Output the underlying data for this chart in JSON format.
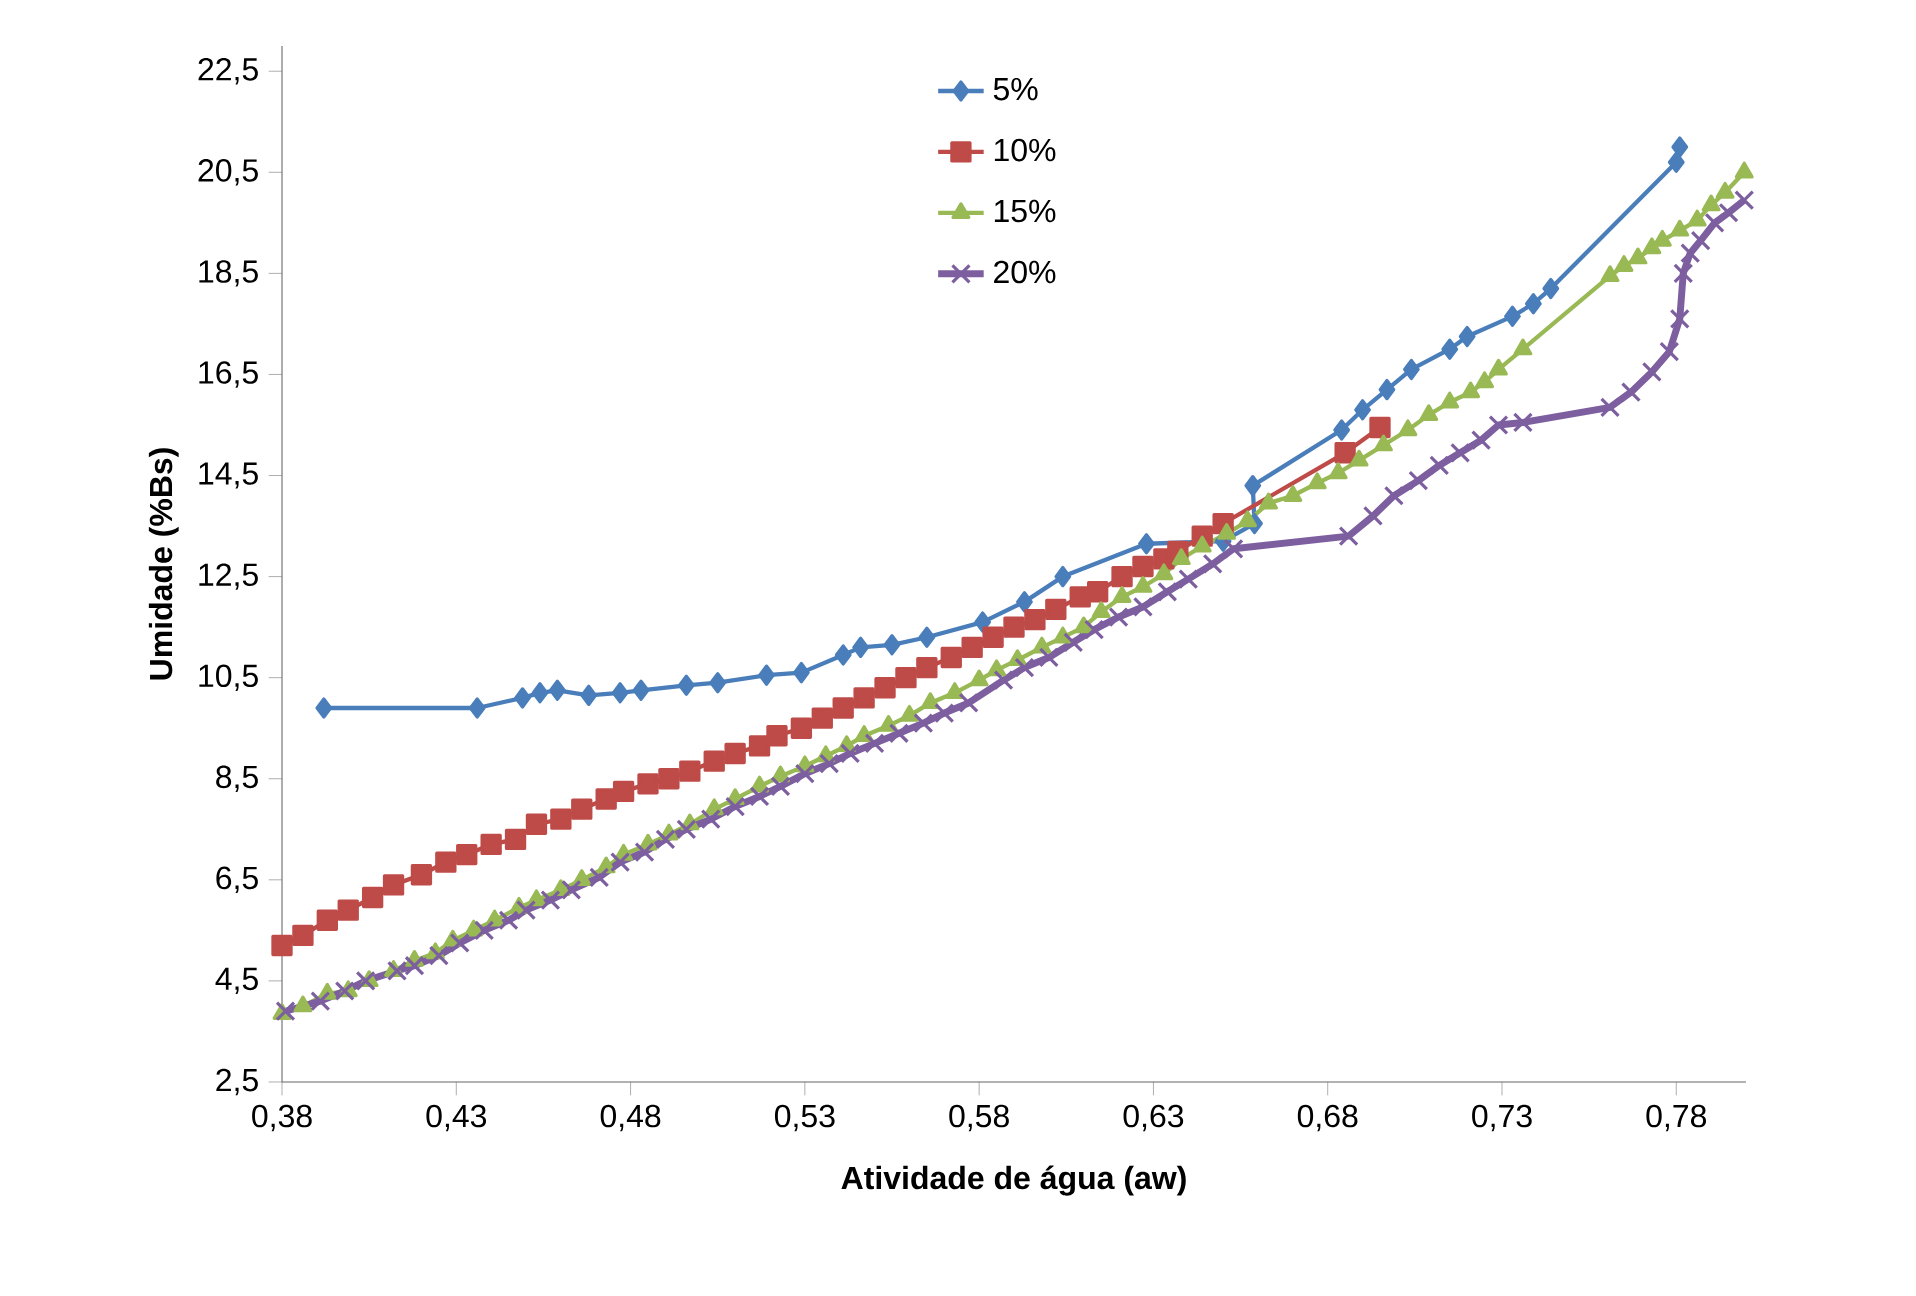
{
  "chart_data": {
    "type": "line",
    "xlabel": "Atividade de água (aw)",
    "ylabel": "Umidade (%Bs)",
    "xlim": [
      0.38,
      0.8
    ],
    "ylim": [
      2.5,
      23
    ],
    "xticks": [
      {
        "value": 0.38,
        "label": "0,38"
      },
      {
        "value": 0.43,
        "label": "0,43"
      },
      {
        "value": 0.48,
        "label": "0,48"
      },
      {
        "value": 0.53,
        "label": "0,53"
      },
      {
        "value": 0.58,
        "label": "0,58"
      },
      {
        "value": 0.63,
        "label": "0,63"
      },
      {
        "value": 0.68,
        "label": "0,68"
      },
      {
        "value": 0.73,
        "label": "0,73"
      },
      {
        "value": 0.78,
        "label": "0,78"
      }
    ],
    "yticks": [
      {
        "value": 2.5,
        "label": "2,5"
      },
      {
        "value": 4.5,
        "label": "4,5"
      },
      {
        "value": 6.5,
        "label": "6,5"
      },
      {
        "value": 8.5,
        "label": "8,5"
      },
      {
        "value": 10.5,
        "label": "10,5"
      },
      {
        "value": 12.5,
        "label": "12,5"
      },
      {
        "value": 14.5,
        "label": "14,5"
      },
      {
        "value": 16.5,
        "label": "16,5"
      },
      {
        "value": 18.5,
        "label": "18,5"
      },
      {
        "value": 20.5,
        "label": "20,5"
      },
      {
        "value": 22.5,
        "label": "22,5"
      }
    ],
    "legend": "top",
    "series": [
      {
        "name": "5%",
        "color": "#4a7ebb",
        "marker": "diamond",
        "x": [
          0.392,
          0.436,
          0.449,
          0.454,
          0.459,
          0.468,
          0.477,
          0.483,
          0.496,
          0.505,
          0.519,
          0.529,
          0.541,
          0.546,
          0.555,
          0.565,
          0.581,
          0.593,
          0.604,
          0.628,
          0.65,
          0.659,
          0.6585,
          0.684,
          0.69,
          0.697,
          0.704,
          0.715,
          0.72,
          0.733,
          0.739,
          0.744,
          0.78,
          0.781
        ],
        "values": [
          9.9,
          9.9,
          10.1,
          10.2,
          10.25,
          10.15,
          10.2,
          10.25,
          10.35,
          10.4,
          10.55,
          10.6,
          10.95,
          11.1,
          11.15,
          11.3,
          11.6,
          12.0,
          12.5,
          13.15,
          13.2,
          13.55,
          14.3,
          15.4,
          15.8,
          16.2,
          16.6,
          17.0,
          17.25,
          17.65,
          17.9,
          18.2,
          20.7,
          21.0
        ]
      },
      {
        "name": "10%",
        "color": "#be4b48",
        "marker": "square",
        "x": [
          0.38,
          0.386,
          0.393,
          0.399,
          0.406,
          0.412,
          0.42,
          0.427,
          0.433,
          0.44,
          0.447,
          0.453,
          0.46,
          0.466,
          0.473,
          0.478,
          0.485,
          0.491,
          0.497,
          0.504,
          0.51,
          0.517,
          0.522,
          0.529,
          0.535,
          0.541,
          0.547,
          0.553,
          0.559,
          0.565,
          0.572,
          0.578,
          0.584,
          0.59,
          0.596,
          0.602,
          0.609,
          0.614,
          0.621,
          0.627,
          0.633,
          0.637,
          0.644,
          0.65,
          0.685,
          0.695
        ],
        "values": [
          5.2,
          5.4,
          5.7,
          5.9,
          6.15,
          6.4,
          6.6,
          6.85,
          7.0,
          7.2,
          7.3,
          7.6,
          7.7,
          7.9,
          8.1,
          8.25,
          8.4,
          8.5,
          8.65,
          8.85,
          9.0,
          9.15,
          9.35,
          9.5,
          9.7,
          9.9,
          10.1,
          10.3,
          10.5,
          10.7,
          10.9,
          11.1,
          11.3,
          11.5,
          11.65,
          11.85,
          12.1,
          12.2,
          12.5,
          12.7,
          12.85,
          13.0,
          13.3,
          13.55,
          14.95,
          15.45
        ]
      },
      {
        "name": "15%",
        "color": "#98b954",
        "marker": "triangle",
        "x": [
          0.38,
          0.386,
          0.393,
          0.399,
          0.405,
          0.412,
          0.418,
          0.424,
          0.429,
          0.435,
          0.441,
          0.448,
          0.453,
          0.46,
          0.466,
          0.473,
          0.478,
          0.485,
          0.491,
          0.497,
          0.504,
          0.51,
          0.517,
          0.523,
          0.53,
          0.536,
          0.542,
          0.547,
          0.554,
          0.56,
          0.566,
          0.573,
          0.58,
          0.585,
          0.591,
          0.598,
          0.604,
          0.61,
          0.615,
          0.621,
          0.627,
          0.633,
          0.638,
          0.644,
          0.651,
          0.657,
          0.663,
          0.67,
          0.677,
          0.683,
          0.689,
          0.696,
          0.703,
          0.709,
          0.715,
          0.721,
          0.725,
          0.729,
          0.736,
          0.761,
          0.765,
          0.769,
          0.773,
          0.776,
          0.781,
          0.786,
          0.79,
          0.794,
          0.7995
        ],
        "values": [
          3.85,
          4.0,
          4.25,
          4.3,
          4.5,
          4.7,
          4.9,
          5.05,
          5.3,
          5.5,
          5.7,
          5.95,
          6.1,
          6.3,
          6.5,
          6.75,
          7.0,
          7.2,
          7.4,
          7.6,
          7.9,
          8.1,
          8.35,
          8.55,
          8.75,
          8.95,
          9.15,
          9.35,
          9.55,
          9.75,
          10.0,
          10.2,
          10.45,
          10.65,
          10.85,
          11.1,
          11.3,
          11.5,
          11.8,
          12.1,
          12.3,
          12.55,
          12.85,
          13.1,
          13.35,
          13.6,
          13.95,
          14.1,
          14.35,
          14.55,
          14.8,
          15.1,
          15.4,
          15.7,
          15.95,
          16.15,
          16.35,
          16.6,
          17.0,
          18.45,
          18.65,
          18.8,
          19.0,
          19.15,
          19.35,
          19.55,
          19.85,
          20.1,
          20.5
        ]
      },
      {
        "name": "20%",
        "color": "#7d5fa0",
        "marker": "cross",
        "x": [
          0.381,
          0.391,
          0.398,
          0.404,
          0.413,
          0.418,
          0.425,
          0.431,
          0.438,
          0.445,
          0.45,
          0.457,
          0.463,
          0.471,
          0.477,
          0.484,
          0.49,
          0.496,
          0.503,
          0.51,
          0.517,
          0.523,
          0.53,
          0.537,
          0.543,
          0.55,
          0.557,
          0.564,
          0.57,
          0.577,
          0.587,
          0.593,
          0.6,
          0.607,
          0.613,
          0.62,
          0.627,
          0.634,
          0.64,
          0.647,
          0.653,
          0.686,
          0.693,
          0.699,
          0.706,
          0.712,
          0.718,
          0.724,
          0.729,
          0.736,
          0.761,
          0.767,
          0.773,
          0.778,
          0.781,
          0.782,
          0.784,
          0.787,
          0.791,
          0.795,
          0.7995
        ],
        "values": [
          3.9,
          4.1,
          4.3,
          4.5,
          4.7,
          4.8,
          5.0,
          5.25,
          5.5,
          5.7,
          5.9,
          6.1,
          6.3,
          6.55,
          6.85,
          7.05,
          7.3,
          7.5,
          7.7,
          7.95,
          8.15,
          8.35,
          8.6,
          8.8,
          9.0,
          9.2,
          9.4,
          9.6,
          9.8,
          10.0,
          10.45,
          10.7,
          10.9,
          11.2,
          11.45,
          11.7,
          11.9,
          12.2,
          12.45,
          12.75,
          13.05,
          13.3,
          13.7,
          14.1,
          14.4,
          14.7,
          14.95,
          15.2,
          15.5,
          15.55,
          15.85,
          16.15,
          16.55,
          16.95,
          17.6,
          18.5,
          18.9,
          19.15,
          19.5,
          19.7,
          19.95
        ]
      }
    ]
  }
}
